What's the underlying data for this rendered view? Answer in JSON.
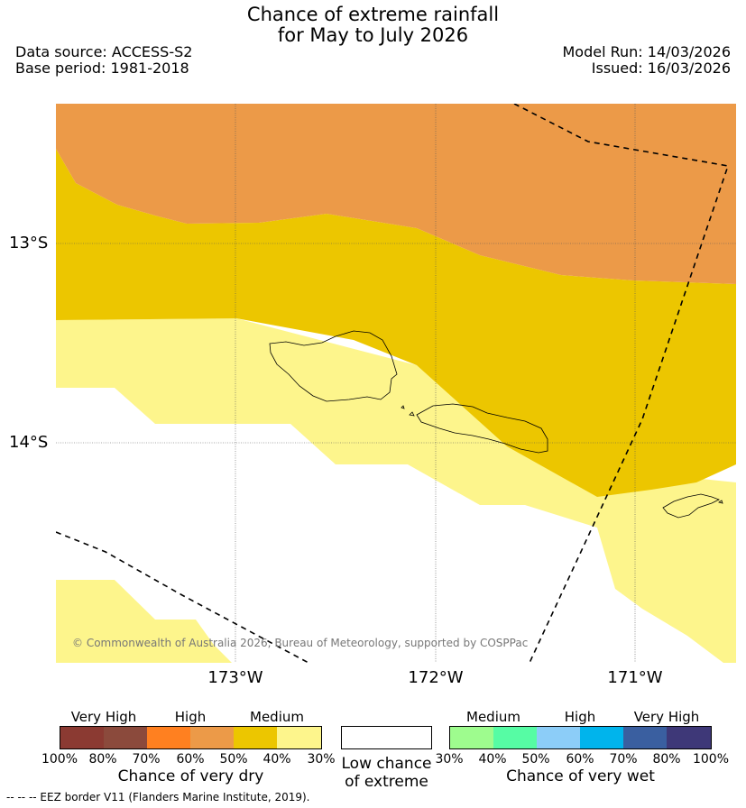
{
  "header": {
    "title_line1": "Chance of extreme rainfall",
    "title_line2": "for May to July 2026",
    "data_source": "Data source: ACCESS-S2",
    "base_period": "Base period: 1981-2018",
    "model_run": "Model Run: 14/03/2026",
    "issued": "Issued: 16/03/2026"
  },
  "map": {
    "lat_labels": [
      "13°S",
      "14°S"
    ],
    "lon_labels": [
      "173°W",
      "172°W",
      "171°W"
    ],
    "copyright": "© Commonwealth of Australia 2026, Bureau of Meteorology, supported by COSPPac",
    "legend_line_label": "--  --  -- EEZ border V11 (Flanders Marine Institute, 2019)."
  },
  "legend": {
    "dry": {
      "categories": [
        "Very High",
        "High",
        "Medium"
      ],
      "ticks": [
        "100%",
        "80%",
        "70%",
        "60%",
        "50%",
        "40%",
        "30%"
      ],
      "colors": [
        "#8b3a32",
        "#8b4a3c",
        "#ff8020",
        "#ec9a48",
        "#ecc600",
        "#fdf58c"
      ],
      "caption": "Chance of very dry"
    },
    "low": {
      "caption_line1": "Low chance",
      "caption_line2": "of extreme",
      "color": "#ffffff"
    },
    "wet": {
      "categories": [
        "Medium",
        "High",
        "Very High"
      ],
      "ticks": [
        "30%",
        "40%",
        "50%",
        "60%",
        "70%",
        "80%",
        "100%"
      ],
      "colors": [
        "#9efc8e",
        "#56fca4",
        "#8ccdf8",
        "#00b4ec",
        "#3a5fa0",
        "#3e3878"
      ],
      "caption": "Chance of very wet"
    }
  }
}
